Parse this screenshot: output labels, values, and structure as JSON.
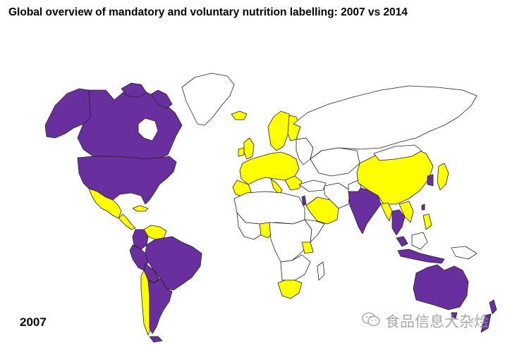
{
  "header": {
    "title": "Global overview of mandatory and voluntary nutrition labelling: 2007 vs 2014"
  },
  "map": {
    "year_label": "2007",
    "colors": {
      "mandatory": "#6a2f9e",
      "voluntary": "#ffff00",
      "none": "#ffffff",
      "border": "#222222"
    },
    "mandatory_regions": [
      "United States",
      "Canada",
      "Alaska",
      "Brazil",
      "Argentina",
      "Paraguay",
      "Uruguay",
      "Colombia",
      "Ecuador",
      "Peru",
      "Bolivia",
      "India",
      "Thailand",
      "Malaysia",
      "Indonesia",
      "Australia",
      "New Zealand",
      "Israel",
      "Taiwan"
    ],
    "voluntary_regions": [
      "Mexico",
      "Guatemala",
      "Honduras",
      "Venezuela",
      "Chile",
      "European Union",
      "Norway",
      "Saudi Arabia",
      "Nigeria",
      "Kenya",
      "South Africa",
      "China",
      "Laos",
      "Myanmar",
      "Philippines",
      "Iceland",
      "Japan",
      "Cuba"
    ]
  },
  "watermark": {
    "text": "食品信息大杂烩",
    "icon": "wechat-icon"
  }
}
